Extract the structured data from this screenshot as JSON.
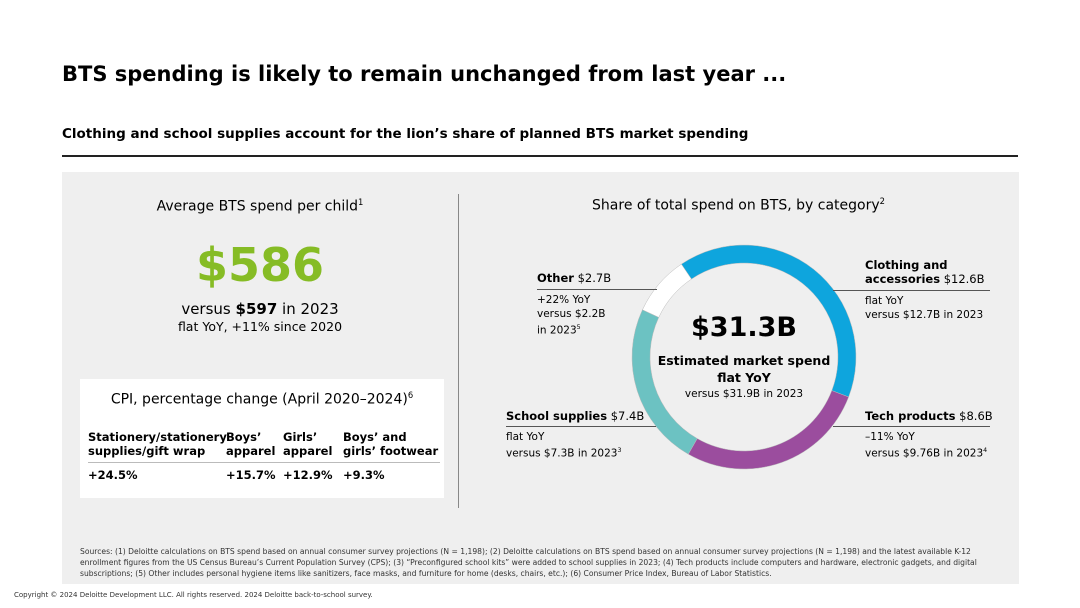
{
  "title": "BTS spending is likely to remain unchanged from last year ...",
  "subtitle": "Clothing and school supplies account for the lion’s share of planned BTS market spending",
  "left": {
    "label": "Average BTS spend per child",
    "label_sup": "1",
    "value": "$586",
    "versus_pre": "versus ",
    "versus_val": "$597",
    "versus_post": " in 2023",
    "flat": "flat YoY, +11% since 2020"
  },
  "cpi": {
    "title": "CPI, percentage change (April 2020–2024)",
    "title_sup": "6",
    "headers": [
      "Stationery/stationery supplies/gift wrap",
      "Boys’ apparel",
      "Girls’ apparel",
      "Boys’ and girls’ footwear"
    ],
    "values": [
      "+24.5%",
      "+15.7%",
      "+12.9%",
      "+9.3%"
    ]
  },
  "colors": {
    "accent": "#86bc25",
    "clothing": "#0ea5dd",
    "tech": "#9b4d9e",
    "school": "#6cc2c2",
    "other": "#ffffff"
  },
  "chart_data": {
    "type": "pie",
    "title": "Share of total spend on BTS, by category",
    "title_sup": "2",
    "total": "$31.3B",
    "center_line1": "Estimated market spend",
    "center_line2": "flat YoY",
    "center_line3": "versus $31.9B in 2023",
    "slices": [
      {
        "name": "Clothing and accessories",
        "name1": "Clothing and",
        "name2": "accessories",
        "amount": "$12.6B",
        "value": 12.6,
        "note1": "flat YoY",
        "note2": "versus $12.7B in 2023",
        "sup": ""
      },
      {
        "name": "Tech products",
        "amount": "$8.6B",
        "value": 8.6,
        "note1": "–11% YoY",
        "note2": "versus $9.76B in 2023",
        "sup": "4"
      },
      {
        "name": "School supplies",
        "amount": "$7.4B",
        "value": 7.4,
        "note1": "flat YoY",
        "note2": "versus $7.3B in 2023",
        "sup": "3"
      },
      {
        "name": "Other",
        "amount": "$2.7B",
        "value": 2.7,
        "note1": "+22% YoY",
        "note2": "versus $2.2B",
        "note3": "in 2023",
        "sup": "5"
      }
    ]
  },
  "sources": "Sources: (1) Deloitte calculations on BTS spend based on annual consumer survey projections (N = 1,198); (2) Deloitte calculations on BTS spend based on annual consumer survey projections (N = 1,198) and the latest available K-12 enrollment figures from the US Census Bureau’s Current Population Survey (CPS); (3) “Preconfigured school kits” were added to school supplies in 2023; (4) Tech products include computers and hardware, electronic gadgets, and digital subscriptions; (5) Other includes personal hygiene items like sanitizers, face masks, and furniture for home (desks, chairs, etc.); (6) Consumer Price Index, Bureau of Labor Statistics.",
  "copyright": "Copyright © 2024 Deloitte Development LLC. All rights reserved. 2024 Deloitte back-to-school survey."
}
